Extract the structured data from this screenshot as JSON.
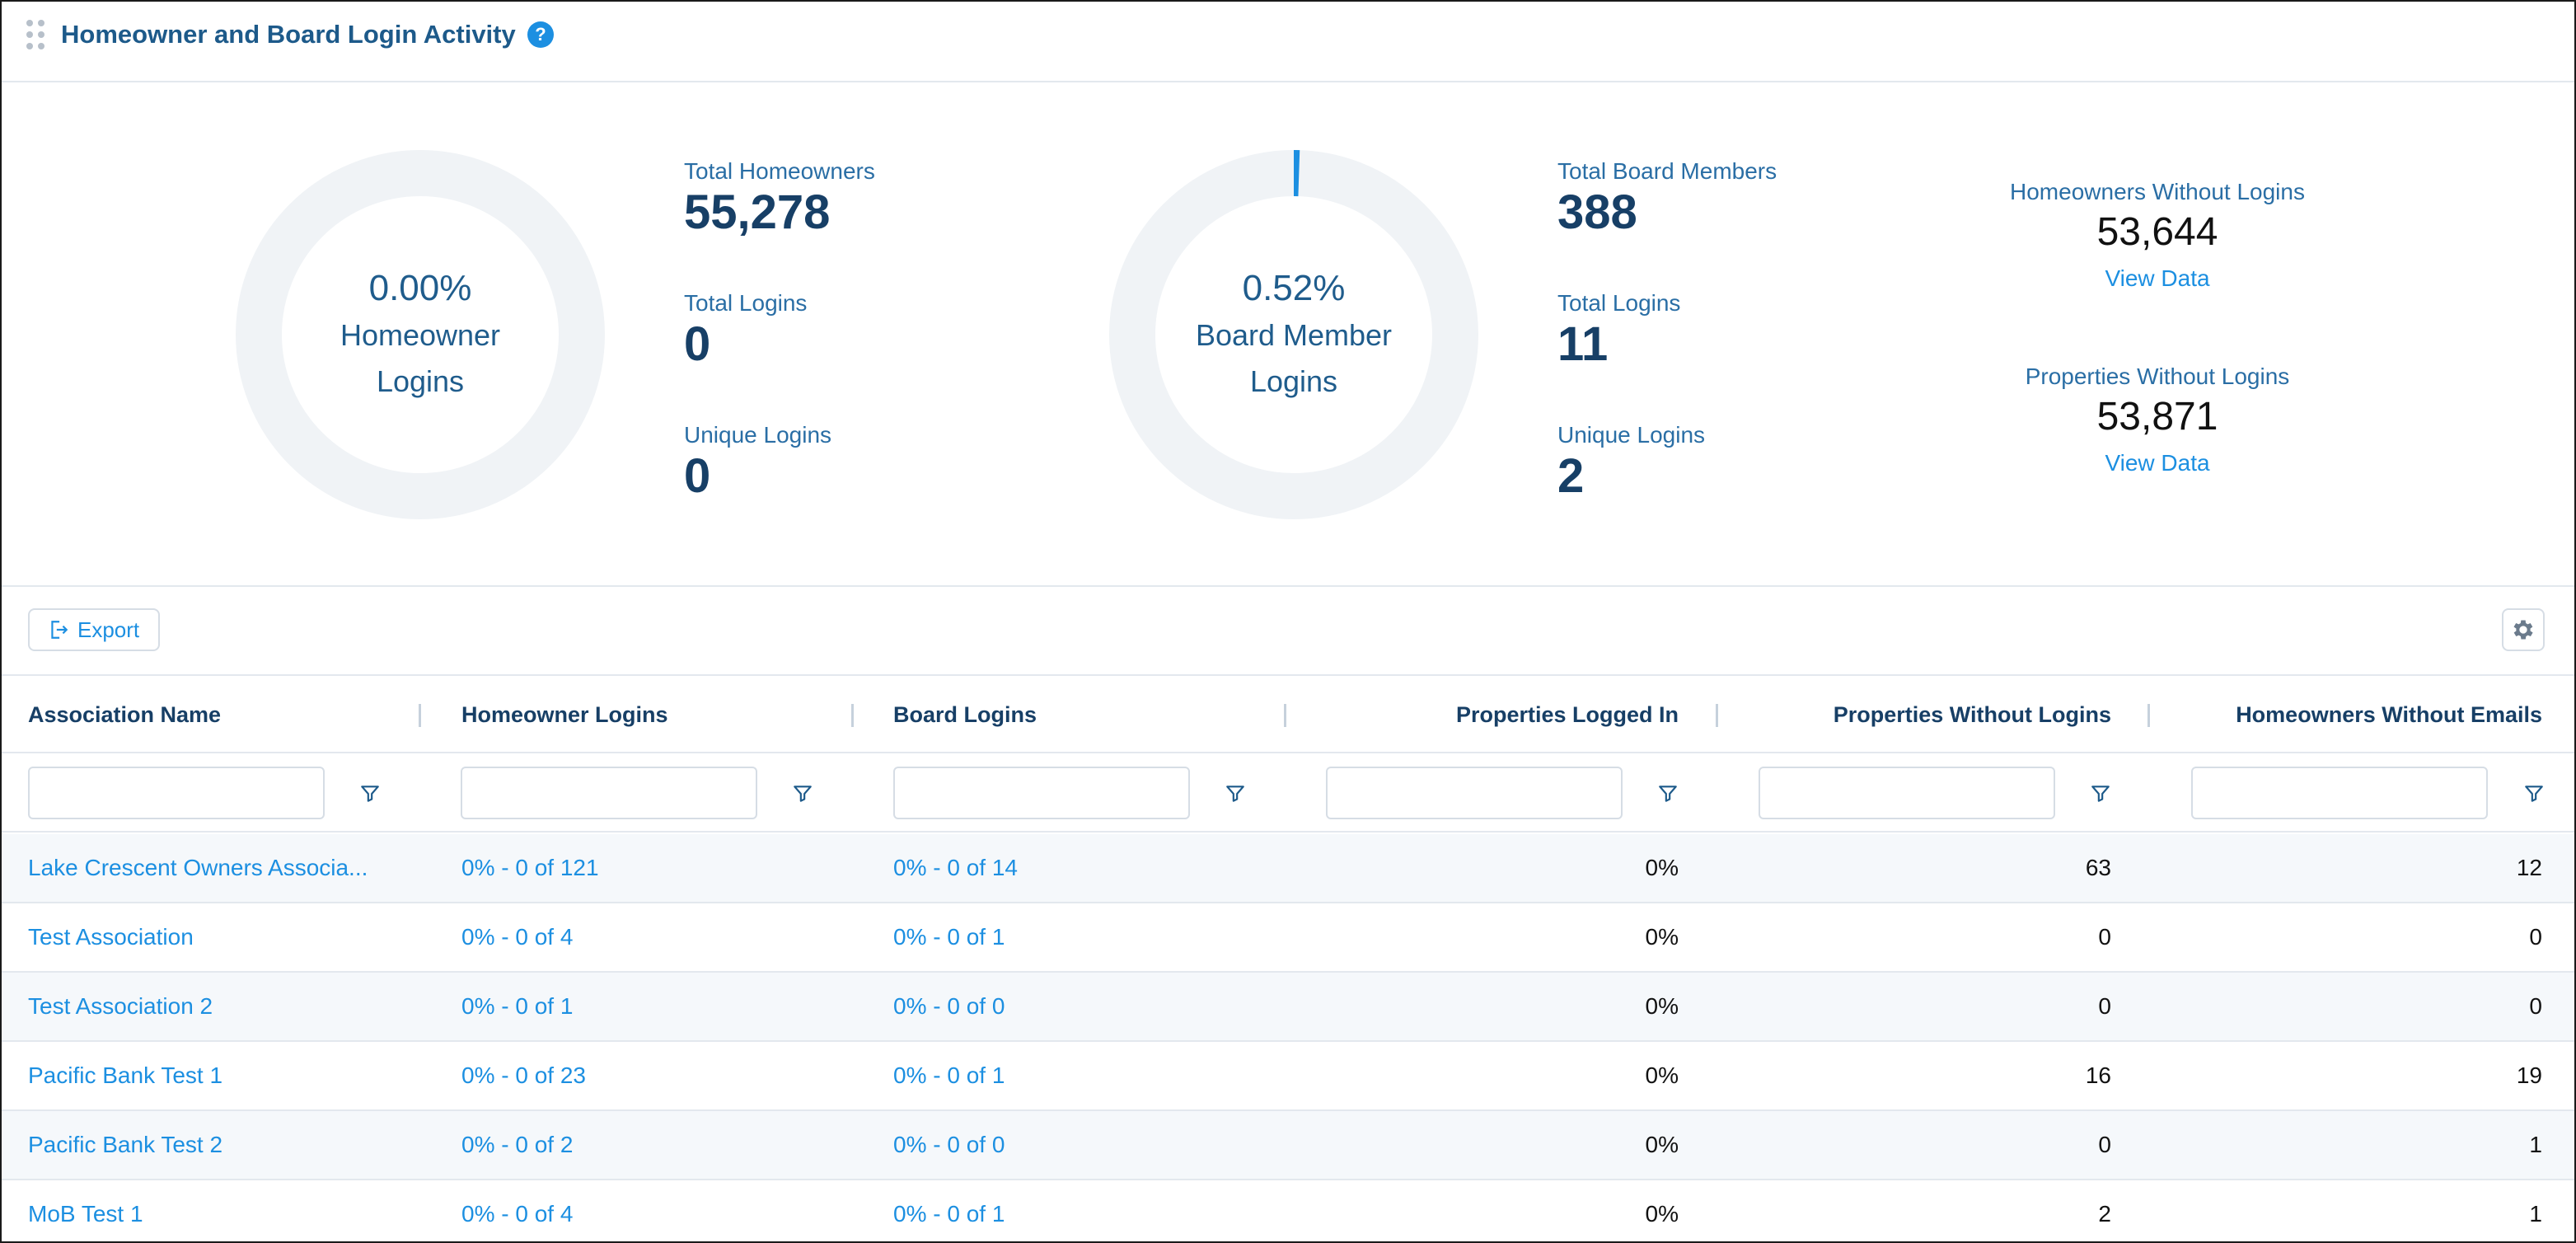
{
  "header": {
    "title": "Homeowner and Board Login Activity",
    "help_label": "?"
  },
  "summary": {
    "homeowner_donut": {
      "percent": "0.00%",
      "label_line1": "Homeowner",
      "label_line2": "Logins",
      "fraction": 0.0
    },
    "homeowner_stats": [
      {
        "label": "Total Homeowners",
        "value": "55,278"
      },
      {
        "label": "Total Logins",
        "value": "0"
      },
      {
        "label": "Unique Logins",
        "value": "0"
      }
    ],
    "board_donut": {
      "percent": "0.52%",
      "label_line1": "Board Member",
      "label_line2": "Logins",
      "fraction": 0.0052
    },
    "board_stats": [
      {
        "label": "Total Board Members",
        "value": "388"
      },
      {
        "label": "Total Logins",
        "value": "11"
      },
      {
        "label": "Unique Logins",
        "value": "2"
      }
    ],
    "without_logins": [
      {
        "label": "Homeowners Without Logins",
        "value": "53,644",
        "link": "View Data"
      },
      {
        "label": "Properties Without Logins",
        "value": "53,871",
        "link": "View Data"
      }
    ]
  },
  "toolbar": {
    "export_label": "Export"
  },
  "table": {
    "columns": [
      "Association Name",
      "Homeowner Logins",
      "Board Logins",
      "Properties Logged In",
      "Properties Without Logins",
      "Homeowners Without Emails"
    ],
    "rows": [
      [
        "Lake Crescent Owners Associa...",
        "0% - 0 of 121",
        "0% - 0 of 14",
        "0%",
        "63",
        "12"
      ],
      [
        "Test Association",
        "0% - 0 of 4",
        "0% - 0 of 1",
        "0%",
        "0",
        "0"
      ],
      [
        "Test Association 2",
        "0% - 0 of 1",
        "0% - 0 of 0",
        "0%",
        "0",
        "0"
      ],
      [
        "Pacific Bank Test 1",
        "0% - 0 of 23",
        "0% - 0 of 1",
        "0%",
        "16",
        "19"
      ],
      [
        "Pacific Bank Test 2",
        "0% - 0 of 2",
        "0% - 0 of 0",
        "0%",
        "0",
        "1"
      ],
      [
        "MoB Test 1",
        "0% - 0 of 4",
        "0% - 0 of 1",
        "0%",
        "2",
        "1"
      ]
    ]
  },
  "colors": {
    "accent": "#1c8fe1",
    "heading": "#173f66",
    "donut_track": "#f0f3f6"
  }
}
